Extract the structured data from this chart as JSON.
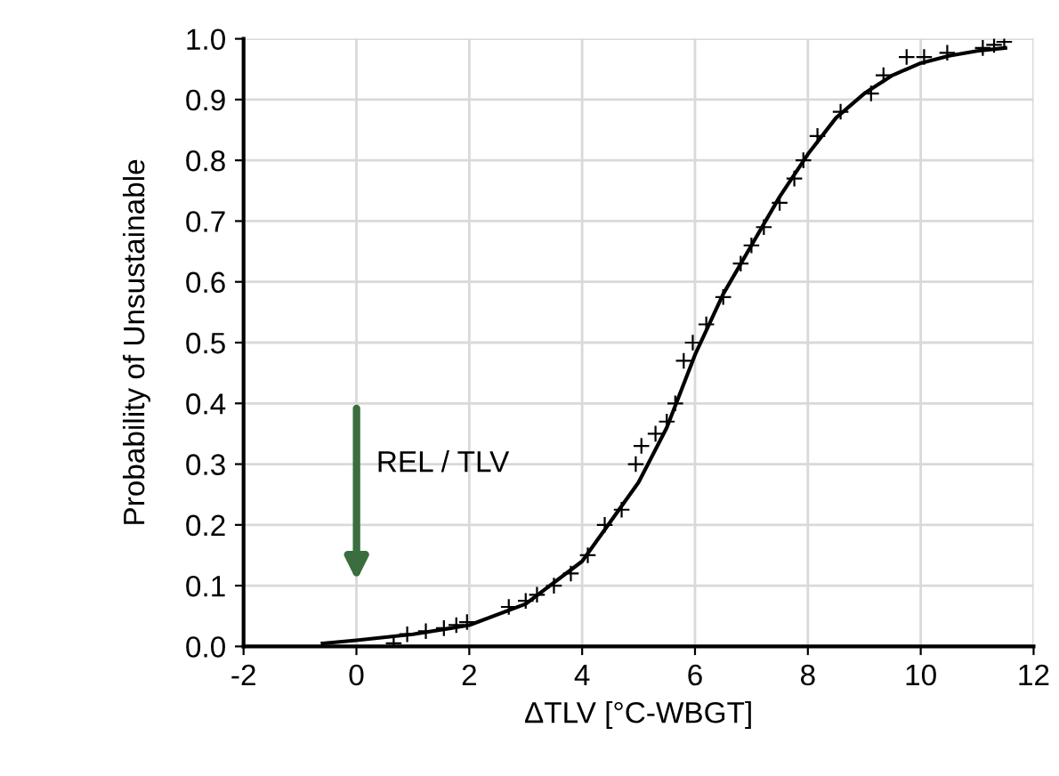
{
  "chart_data": {
    "type": "scatter",
    "xlabel": "ΔTLV [°C-WBGT]",
    "ylabel": "Probability of Unsustainable",
    "series": [
      {
        "color": "#000000",
        "marker": "cross",
        "x": [
          0.66,
          0.9,
          1.23,
          1.55,
          1.77,
          1.96,
          2.7,
          3.0,
          3.2,
          3.5,
          3.8,
          4.1,
          4.4,
          4.7,
          4.95,
          5.05,
          5.3,
          5.5,
          5.65,
          5.8,
          5.96,
          6.2,
          6.5,
          6.81,
          7.0,
          7.22,
          7.5,
          7.76,
          7.92,
          8.17,
          8.58,
          9.12,
          9.34,
          9.75,
          10.06,
          10.47,
          11.1,
          11.3,
          11.48
        ],
        "values": [
          0.005,
          0.02,
          0.025,
          0.03,
          0.035,
          0.04,
          0.065,
          0.075,
          0.085,
          0.1,
          0.12,
          0.15,
          0.2,
          0.225,
          0.3,
          0.33,
          0.35,
          0.37,
          0.4,
          0.47,
          0.5,
          0.53,
          0.575,
          0.63,
          0.66,
          0.69,
          0.73,
          0.77,
          0.8,
          0.84,
          0.88,
          0.91,
          0.94,
          0.97,
          0.97,
          0.977,
          0.985,
          0.99,
          0.995
        ]
      },
      {
        "type": "line",
        "color": "#000000",
        "marker": "none",
        "line_style": "solid",
        "x": [
          -0.6,
          0,
          1,
          2,
          3,
          4,
          5,
          5.5,
          6,
          6.5,
          7,
          7.5,
          8,
          8.5,
          9,
          9.5,
          10,
          10.5,
          11,
          11.5
        ],
        "values": [
          0.005,
          0.01,
          0.02,
          0.035,
          0.07,
          0.14,
          0.27,
          0.36,
          0.48,
          0.58,
          0.66,
          0.74,
          0.81,
          0.87,
          0.91,
          0.94,
          0.96,
          0.972,
          0.98,
          0.985
        ]
      }
    ],
    "xlim": [
      -2,
      12
    ],
    "xticks": [
      -2,
      0,
      2,
      4,
      6,
      8,
      10,
      12
    ],
    "ylim": [
      0,
      1
    ],
    "yticks": [
      {
        "value": 0,
        "label": "0.0"
      },
      0.1,
      0.2,
      0.3,
      0.4,
      0.5,
      0.6,
      0.7,
      0.8,
      0.9,
      {
        "value": 1,
        "label": "1.0"
      }
    ],
    "grid": true,
    "legend": false,
    "annotations": [
      "REL / TLV"
    ]
  }
}
